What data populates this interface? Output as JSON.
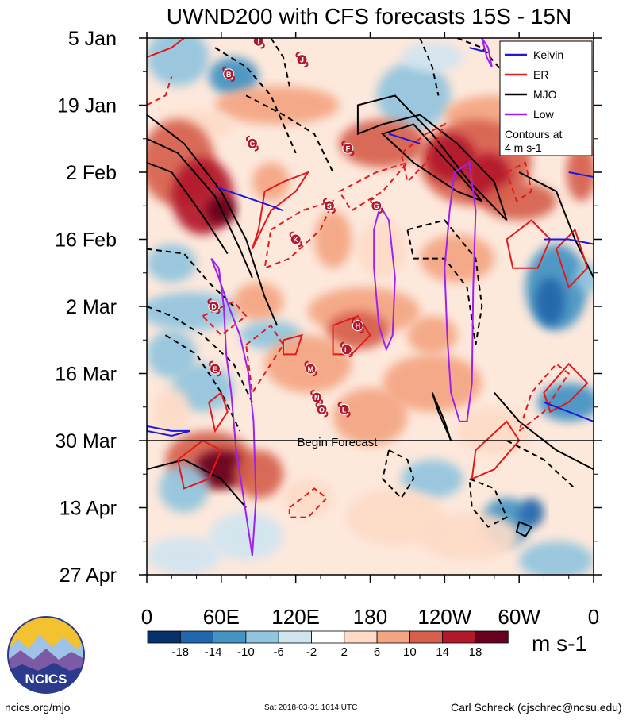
{
  "chart_data": {
    "type": "heatmap",
    "title": "UWND200 with CFS forecasts  15S - 15N",
    "x_tick_labels": [
      "0",
      "60E",
      "120E",
      "180",
      "120W",
      "60W",
      "0"
    ],
    "x_ticks_deg": [
      0,
      60,
      120,
      180,
      240,
      300,
      360
    ],
    "y_tick_labels": [
      "5 Jan",
      "19 Jan",
      "2 Feb",
      "16 Feb",
      "2 Mar",
      "16 Mar",
      "30 Mar",
      "13 Apr",
      "27 Apr"
    ],
    "y_ticks_days": [
      0,
      14,
      28,
      42,
      56,
      70,
      84,
      98,
      112
    ],
    "xlim": [
      0,
      360
    ],
    "ylim_days": [
      0,
      112
    ],
    "forecast_start_day": 84,
    "forecast_label": "Begin Forecast",
    "colorbar": {
      "levels": [
        -18,
        -14,
        -10,
        -6,
        -2,
        2,
        6,
        10,
        14,
        18
      ],
      "colors": [
        "#08306b",
        "#2166ac",
        "#4393c3",
        "#92c5de",
        "#d1e5f0",
        "#ffffff",
        "#fddbc7",
        "#f4a582",
        "#d6604d",
        "#b2182b",
        "#67001f"
      ],
      "units": "m s-1"
    },
    "legend": {
      "placement": "top-right",
      "entries": [
        {
          "label": "Kelvin",
          "color": "#1a1adb"
        },
        {
          "label": "ER",
          "color": "#e31a1c"
        },
        {
          "label": "MJO",
          "color": "#000000"
        },
        {
          "label": "Low",
          "color": "#a020f0"
        }
      ],
      "note_line1": "Contours at",
      "note_line2": "4 m s-1"
    },
    "storm_markers": [
      {
        "letter": "I",
        "lon": 90,
        "day": 0.6
      },
      {
        "letter": "J",
        "lon": 125,
        "day": 4.5
      },
      {
        "letter": "B",
        "lon": 66,
        "day": 7.5
      },
      {
        "letter": "C",
        "lon": 85,
        "day": 22
      },
      {
        "letter": "F",
        "lon": 162,
        "day": 23
      },
      {
        "letter": "S",
        "lon": 147,
        "day": 35
      },
      {
        "letter": "G",
        "lon": 185,
        "day": 35
      },
      {
        "letter": "K",
        "lon": 120,
        "day": 42
      },
      {
        "letter": "D",
        "lon": 54,
        "day": 56
      },
      {
        "letter": "H",
        "lon": 170,
        "day": 60
      },
      {
        "letter": "L",
        "lon": 161,
        "day": 65
      },
      {
        "letter": "E",
        "lon": 55,
        "day": 69
      },
      {
        "letter": "M",
        "lon": 132,
        "day": 69
      },
      {
        "letter": "N",
        "lon": 137,
        "day": 75
      },
      {
        "letter": "O",
        "lon": 141,
        "day": 77.5
      },
      {
        "letter": "L",
        "lon": 159,
        "day": 77.5
      }
    ]
  },
  "footer": {
    "site": "ncics.org/mjo",
    "timestamp": "Sat 2018-03-31 1014 UTC",
    "author": "Carl Schreck (cjschrec@ncsu.edu)",
    "logo_text": "NCICS"
  },
  "colors": {
    "kelvin": "#1a1adb",
    "er": "#e31a1c",
    "mjo": "#000000",
    "low": "#a020f0"
  }
}
